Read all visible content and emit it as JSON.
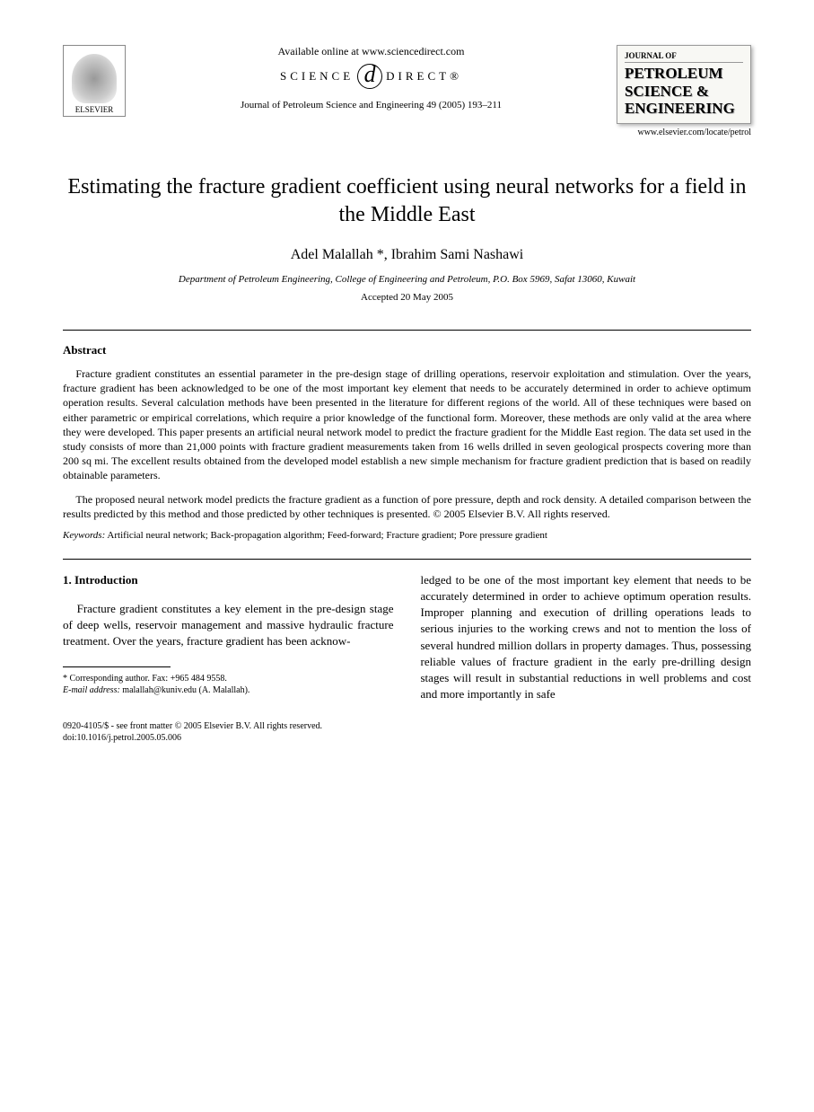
{
  "header": {
    "elsevier": "ELSEVIER",
    "available_online": "Available online at www.sciencedirect.com",
    "science": "SCIENCE",
    "direct": "DIRECT®",
    "citation": "Journal of Petroleum Science and Engineering 49 (2005) 193–211",
    "journal_label": "JOURNAL OF",
    "journal_title_1": "PETROLEUM",
    "journal_title_2": "SCIENCE &",
    "journal_title_3": "ENGINEERING",
    "journal_url": "www.elsevier.com/locate/petrol"
  },
  "title": "Estimating the fracture gradient coefficient using neural networks for a field in the Middle East",
  "authors": "Adel Malallah *, Ibrahim Sami Nashawi",
  "affiliation": "Department of Petroleum Engineering, College of Engineering and Petroleum, P.O. Box 5969, Safat 13060, Kuwait",
  "accepted": "Accepted 20 May 2005",
  "abstract": {
    "heading": "Abstract",
    "p1": "Fracture gradient constitutes an essential parameter in the pre-design stage of drilling operations, reservoir exploitation and stimulation. Over the years, fracture gradient has been acknowledged to be one of the most important key element that needs to be accurately determined in order to achieve optimum operation results. Several calculation methods have been presented in the literature for different regions of the world. All of these techniques were based on either parametric or empirical correlations, which require a prior knowledge of the functional form. Moreover, these methods are only valid at the area where they were developed. This paper presents an artificial neural network model to predict the fracture gradient for the Middle East region. The data set used in the study consists of more than 21,000 points with fracture gradient measurements taken from 16 wells drilled in seven geological prospects covering more than 200 sq mi. The excellent results obtained from the developed model establish a new simple mechanism for fracture gradient prediction that is based on readily obtainable parameters.",
    "p2": "The proposed neural network model predicts the fracture gradient as a function of pore pressure, depth and rock density. A detailed comparison between the results predicted by this method and those predicted by other techniques is presented. © 2005 Elsevier B.V. All rights reserved."
  },
  "keywords": {
    "label": "Keywords:",
    "text": " Artificial neural network; Back-propagation algorithm; Feed-forward; Fracture gradient; Pore pressure gradient"
  },
  "intro": {
    "heading": "1. Introduction",
    "col1": "Fracture gradient constitutes a key element in the pre-design stage of deep wells, reservoir management and massive hydraulic fracture treatment. Over the years, fracture gradient has been acknow-",
    "col2": "ledged to be one of the most important key element that needs to be accurately determined in order to achieve optimum operation results. Improper planning and execution of drilling operations leads to serious injuries to the working crews and not to mention the loss of several hundred million dollars in property damages. Thus, possessing reliable values of fracture gradient in the early pre-drilling design stages will result in substantial reductions in well problems and cost and more importantly in safe"
  },
  "footnote": {
    "corr": "* Corresponding author. Fax: +965 484 9558.",
    "email_label": "E-mail address:",
    "email": " malallah@kuniv.edu (A. Malallah)."
  },
  "footer": {
    "copyright": "0920-4105/$ - see front matter © 2005 Elsevier B.V. All rights reserved.",
    "doi": "doi:10.1016/j.petrol.2005.05.006"
  }
}
